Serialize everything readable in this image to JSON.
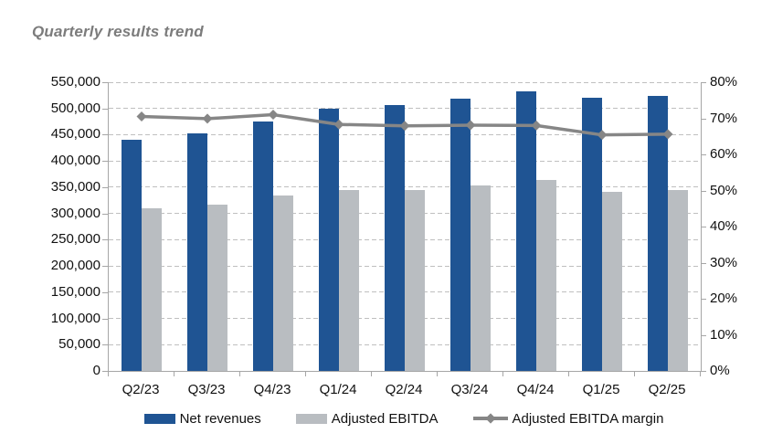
{
  "chart_data": {
    "type": "bar",
    "subtype": "grouped-bars-with-line-overlay",
    "title": "Quarterly results trend",
    "categories": [
      "Q2/23",
      "Q3/23",
      "Q4/23",
      "Q1/24",
      "Q2/24",
      "Q3/24",
      "Q4/24",
      "Q1/25",
      "Q2/25"
    ],
    "series": [
      {
        "name": "Net revenues",
        "type": "bar",
        "axis": "left",
        "color": "#1F5493",
        "values": [
          440000,
          452000,
          475000,
          500000,
          507000,
          519000,
          533000,
          520000,
          524000
        ]
      },
      {
        "name": "Adjusted EBITDA",
        "type": "bar",
        "axis": "left",
        "color": "#B9BDC1",
        "values": [
          310000,
          317000,
          335000,
          345000,
          344000,
          354000,
          363000,
          341000,
          345000
        ]
      },
      {
        "name": "Adjusted EBITDA margin",
        "type": "line",
        "axis": "right",
        "color": "#868686",
        "marker": "diamond",
        "unit": "%",
        "values": [
          70.5,
          69.9,
          71.0,
          68.3,
          67.9,
          68.1,
          68.0,
          65.4,
          65.6
        ]
      }
    ],
    "left_axis": {
      "min": 0,
      "max": 550000,
      "step": 50000,
      "tick_labels": [
        "0",
        "50,000",
        "100,000",
        "150,000",
        "200,000",
        "250,000",
        "300,000",
        "350,000",
        "400,000",
        "450,000",
        "500,000",
        "550,000"
      ]
    },
    "right_axis": {
      "min": 0,
      "max": 80,
      "step": 10,
      "tick_labels": [
        "0%",
        "10%",
        "20%",
        "30%",
        "40%",
        "50%",
        "60%",
        "70%",
        "80%"
      ]
    },
    "grid": {
      "horizontal": "dashed",
      "color": "#BFBFBF"
    },
    "axis_color": "#A6A6A6",
    "legend_position": "bottom"
  }
}
